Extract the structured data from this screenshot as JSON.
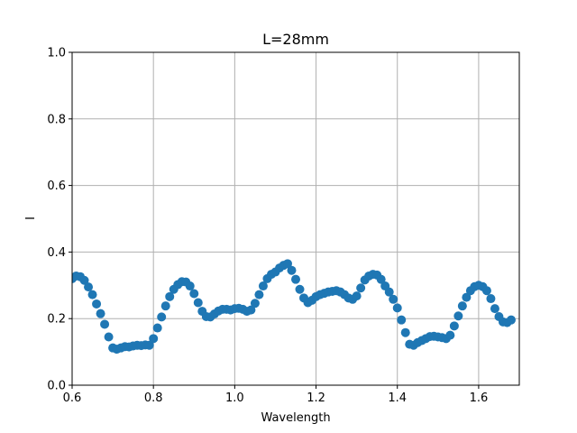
{
  "chart_data": {
    "type": "scatter",
    "title": "L=28mm",
    "xlabel": "Wavelength",
    "ylabel": "I",
    "xlim": [
      0.6,
      1.7
    ],
    "ylim": [
      0.0,
      1.0
    ],
    "xticks": [
      0.6,
      0.8,
      1.0,
      1.2,
      1.4,
      1.6
    ],
    "xtick_labels": [
      "0.6",
      "0.8",
      "1.0",
      "1.2",
      "1.4",
      "1.6"
    ],
    "yticks": [
      0.0,
      0.2,
      0.4,
      0.6,
      0.8,
      1.0
    ],
    "ytick_labels": [
      "0.0",
      "0.2",
      "0.4",
      "0.6",
      "0.8",
      "1.0"
    ],
    "grid": true,
    "marker_color": "#1f77b4",
    "grid_color": "#b0b0b0",
    "series": [
      {
        "points": [
          [
            0.6,
            0.32
          ],
          [
            0.61,
            0.328
          ],
          [
            0.62,
            0.326
          ],
          [
            0.63,
            0.315
          ],
          [
            0.64,
            0.295
          ],
          [
            0.65,
            0.272
          ],
          [
            0.66,
            0.244
          ],
          [
            0.67,
            0.215
          ],
          [
            0.68,
            0.183
          ],
          [
            0.69,
            0.145
          ],
          [
            0.7,
            0.112
          ],
          [
            0.71,
            0.108
          ],
          [
            0.72,
            0.112
          ],
          [
            0.73,
            0.116
          ],
          [
            0.74,
            0.115
          ],
          [
            0.75,
            0.118
          ],
          [
            0.76,
            0.12
          ],
          [
            0.77,
            0.119
          ],
          [
            0.78,
            0.121
          ],
          [
            0.79,
            0.12
          ],
          [
            0.8,
            0.14
          ],
          [
            0.81,
            0.172
          ],
          [
            0.82,
            0.205
          ],
          [
            0.83,
            0.238
          ],
          [
            0.84,
            0.266
          ],
          [
            0.85,
            0.288
          ],
          [
            0.86,
            0.302
          ],
          [
            0.87,
            0.311
          ],
          [
            0.88,
            0.31
          ],
          [
            0.89,
            0.298
          ],
          [
            0.9,
            0.275
          ],
          [
            0.91,
            0.248
          ],
          [
            0.92,
            0.222
          ],
          [
            0.93,
            0.206
          ],
          [
            0.94,
            0.205
          ],
          [
            0.95,
            0.214
          ],
          [
            0.96,
            0.223
          ],
          [
            0.97,
            0.228
          ],
          [
            0.98,
            0.228
          ],
          [
            0.99,
            0.226
          ],
          [
            1.0,
            0.23
          ],
          [
            1.01,
            0.231
          ],
          [
            1.02,
            0.228
          ],
          [
            1.03,
            0.222
          ],
          [
            1.04,
            0.226
          ],
          [
            1.05,
            0.246
          ],
          [
            1.06,
            0.272
          ],
          [
            1.07,
            0.298
          ],
          [
            1.08,
            0.32
          ],
          [
            1.09,
            0.333
          ],
          [
            1.1,
            0.34
          ],
          [
            1.11,
            0.352
          ],
          [
            1.12,
            0.36
          ],
          [
            1.13,
            0.365
          ],
          [
            1.14,
            0.345
          ],
          [
            1.15,
            0.318
          ],
          [
            1.16,
            0.288
          ],
          [
            1.17,
            0.262
          ],
          [
            1.18,
            0.248
          ],
          [
            1.19,
            0.255
          ],
          [
            1.2,
            0.266
          ],
          [
            1.21,
            0.272
          ],
          [
            1.22,
            0.276
          ],
          [
            1.23,
            0.28
          ],
          [
            1.24,
            0.282
          ],
          [
            1.25,
            0.284
          ],
          [
            1.26,
            0.28
          ],
          [
            1.27,
            0.272
          ],
          [
            1.28,
            0.262
          ],
          [
            1.29,
            0.258
          ],
          [
            1.3,
            0.268
          ],
          [
            1.31,
            0.292
          ],
          [
            1.32,
            0.316
          ],
          [
            1.33,
            0.328
          ],
          [
            1.34,
            0.333
          ],
          [
            1.35,
            0.331
          ],
          [
            1.36,
            0.318
          ],
          [
            1.37,
            0.298
          ],
          [
            1.38,
            0.28
          ],
          [
            1.39,
            0.258
          ],
          [
            1.4,
            0.232
          ],
          [
            1.41,
            0.196
          ],
          [
            1.42,
            0.158
          ],
          [
            1.43,
            0.123
          ],
          [
            1.44,
            0.12
          ],
          [
            1.45,
            0.128
          ],
          [
            1.46,
            0.134
          ],
          [
            1.47,
            0.14
          ],
          [
            1.48,
            0.146
          ],
          [
            1.49,
            0.147
          ],
          [
            1.5,
            0.145
          ],
          [
            1.51,
            0.143
          ],
          [
            1.52,
            0.14
          ],
          [
            1.53,
            0.15
          ],
          [
            1.54,
            0.178
          ],
          [
            1.55,
            0.208
          ],
          [
            1.56,
            0.238
          ],
          [
            1.57,
            0.264
          ],
          [
            1.58,
            0.284
          ],
          [
            1.59,
            0.296
          ],
          [
            1.6,
            0.3
          ],
          [
            1.61,
            0.296
          ],
          [
            1.62,
            0.284
          ],
          [
            1.63,
            0.26
          ],
          [
            1.64,
            0.23
          ],
          [
            1.65,
            0.206
          ],
          [
            1.66,
            0.19
          ],
          [
            1.67,
            0.188
          ],
          [
            1.68,
            0.196
          ]
        ]
      }
    ]
  }
}
